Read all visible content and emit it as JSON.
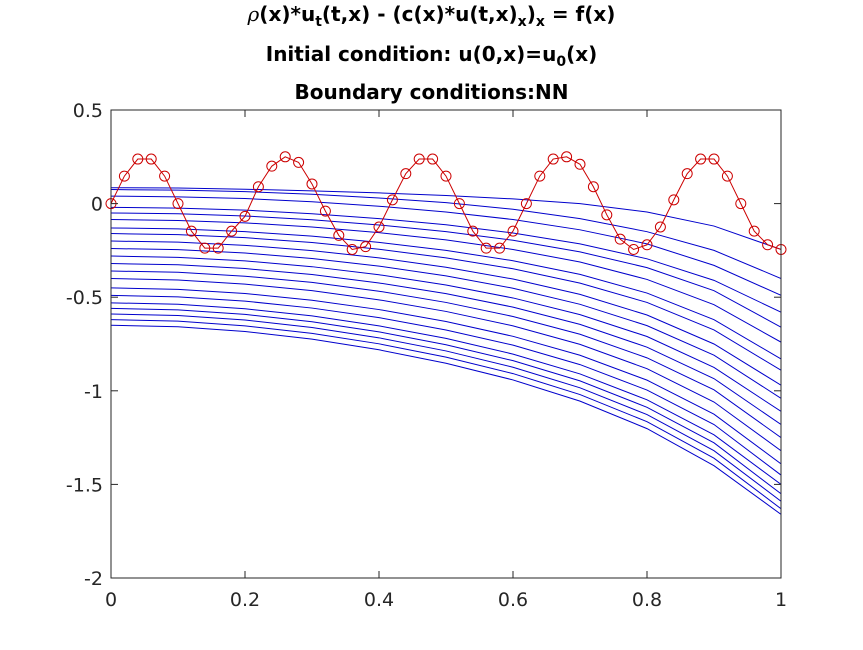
{
  "title": {
    "line1": {
      "rho": "ρ",
      "p1": "(x)*u",
      "sub1": "t",
      "p2": "(t,x) - (c(x)*u(t,x)",
      "sub2": "x",
      "p3": ")",
      "sub3": "x",
      "p4": " = f(x)"
    },
    "line2": {
      "p1": "Initial condition: u(0,x)=u",
      "sub1": "0",
      "p2": "(x)"
    },
    "line3": "Boundary conditions:NN"
  },
  "chart_data": {
    "type": "line",
    "xlim": [
      0,
      1
    ],
    "ylim": [
      -2,
      0.5
    ],
    "xticks": [
      0,
      0.2,
      0.4,
      0.6,
      0.8,
      1
    ],
    "xtick_labels": [
      "0",
      "0.2",
      "0.4",
      "0.6",
      "0.8",
      "1"
    ],
    "yticks": [
      0.5,
      0,
      -0.5,
      -1,
      -1.5,
      -2
    ],
    "ytick_labels": [
      "0.5",
      "0",
      "-0.5",
      "-1",
      "-1.5",
      "-2"
    ],
    "grid": false,
    "initial_condition": {
      "color": "#cc0000",
      "marker": "circle",
      "x": [
        0,
        0.02,
        0.04,
        0.06,
        0.08,
        0.1,
        0.12,
        0.14,
        0.16,
        0.18,
        0.2,
        0.22,
        0.24,
        0.26,
        0.28,
        0.3,
        0.32,
        0.34,
        0.36,
        0.38,
        0.4,
        0.42,
        0.44,
        0.46,
        0.48,
        0.5,
        0.52,
        0.54,
        0.56,
        0.58,
        0.6,
        0.62,
        0.64,
        0.66,
        0.68,
        0.7,
        0.72,
        0.74,
        0.76,
        0.78,
        0.8,
        0.82,
        0.84,
        0.86,
        0.88,
        0.9,
        0.92,
        0.94,
        0.96,
        0.98,
        1
      ],
      "y": [
        0,
        0.147,
        0.238,
        0.238,
        0.147,
        0.0,
        -0.147,
        -0.238,
        -0.238,
        -0.147,
        -0.068,
        0.09,
        0.2,
        0.25,
        0.22,
        0.105,
        -0.04,
        -0.17,
        -0.245,
        -0.23,
        -0.125,
        0.02,
        0.16,
        0.238,
        0.238,
        0.147,
        0.0,
        -0.147,
        -0.238,
        -0.238,
        -0.147,
        0.0,
        0.147,
        0.238,
        0.25,
        0.21,
        0.09,
        -0.06,
        -0.19,
        -0.245,
        -0.22,
        -0.125,
        0.02,
        0.16,
        0.238,
        0.238,
        0.147,
        0.0,
        -0.147,
        -0.22,
        -0.245
      ]
    },
    "solution_curves": {
      "color": "#0000cc",
      "x": [
        0,
        0.1,
        0.2,
        0.3,
        0.4,
        0.5,
        0.6,
        0.7,
        0.8,
        0.9,
        1
      ],
      "series": [
        {
          "values": [
            0.085,
            0.083,
            0.077,
            0.068,
            0.057,
            0.043,
            0.025,
            0.0,
            -0.045,
            -0.12,
            -0.245
          ]
        },
        {
          "values": [
            0.075,
            0.072,
            0.064,
            0.05,
            0.03,
            0.005,
            -0.03,
            -0.08,
            -0.15,
            -0.25,
            -0.4
          ]
        },
        {
          "values": [
            0.04,
            0.036,
            0.027,
            0.01,
            -0.014,
            -0.045,
            -0.085,
            -0.14,
            -0.215,
            -0.33,
            -0.49
          ]
        },
        {
          "values": [
            -0.02,
            -0.024,
            -0.035,
            -0.054,
            -0.08,
            -0.113,
            -0.157,
            -0.215,
            -0.295,
            -0.41,
            -0.58
          ]
        },
        {
          "values": [
            -0.05,
            -0.054,
            -0.066,
            -0.086,
            -0.114,
            -0.15,
            -0.196,
            -0.258,
            -0.342,
            -0.465,
            -0.66
          ]
        },
        {
          "values": [
            -0.085,
            -0.09,
            -0.103,
            -0.125,
            -0.155,
            -0.194,
            -0.245,
            -0.312,
            -0.405,
            -0.54,
            -0.74
          ]
        },
        {
          "values": [
            -0.13,
            -0.135,
            -0.15,
            -0.174,
            -0.207,
            -0.25,
            -0.305,
            -0.378,
            -0.478,
            -0.62,
            -0.83
          ]
        },
        {
          "values": [
            -0.16,
            -0.166,
            -0.182,
            -0.208,
            -0.244,
            -0.29,
            -0.348,
            -0.425,
            -0.528,
            -0.675,
            -0.89
          ]
        },
        {
          "values": [
            -0.2,
            -0.206,
            -0.223,
            -0.251,
            -0.29,
            -0.34,
            -0.403,
            -0.485,
            -0.595,
            -0.75,
            -0.97
          ]
        },
        {
          "values": [
            -0.24,
            -0.246,
            -0.264,
            -0.293,
            -0.334,
            -0.386,
            -0.452,
            -0.538,
            -0.652,
            -0.81,
            -1.04
          ]
        },
        {
          "values": [
            -0.28,
            -0.287,
            -0.306,
            -0.337,
            -0.38,
            -0.435,
            -0.504,
            -0.593,
            -0.71,
            -0.875,
            -1.11
          ]
        },
        {
          "values": [
            -0.32,
            -0.327,
            -0.347,
            -0.379,
            -0.424,
            -0.481,
            -0.553,
            -0.645,
            -0.767,
            -0.935,
            -1.18
          ]
        },
        {
          "values": [
            -0.36,
            -0.367,
            -0.388,
            -0.421,
            -0.468,
            -0.528,
            -0.603,
            -0.698,
            -0.824,
            -0.995,
            -1.25
          ]
        },
        {
          "values": [
            -0.4,
            -0.408,
            -0.43,
            -0.465,
            -0.514,
            -0.576,
            -0.653,
            -0.752,
            -0.882,
            -1.06,
            -1.32
          ]
        },
        {
          "values": [
            -0.45,
            -0.458,
            -0.48,
            -0.516,
            -0.566,
            -0.63,
            -0.709,
            -0.81,
            -0.943,
            -1.125,
            -1.39
          ]
        },
        {
          "values": [
            -0.49,
            -0.498,
            -0.521,
            -0.558,
            -0.609,
            -0.675,
            -0.756,
            -0.86,
            -0.996,
            -1.18,
            -1.45
          ]
        },
        {
          "values": [
            -0.53,
            -0.538,
            -0.562,
            -0.6,
            -0.653,
            -0.72,
            -0.804,
            -0.91,
            -1.048,
            -1.235,
            -1.5
          ]
        },
        {
          "values": [
            -0.56,
            -0.568,
            -0.592,
            -0.631,
            -0.685,
            -0.754,
            -0.839,
            -0.947,
            -1.088,
            -1.278,
            -1.55
          ]
        },
        {
          "values": [
            -0.59,
            -0.598,
            -0.622,
            -0.662,
            -0.717,
            -0.787,
            -0.874,
            -0.984,
            -1.127,
            -1.32,
            -1.59
          ]
        },
        {
          "values": [
            -0.62,
            -0.628,
            -0.653,
            -0.693,
            -0.749,
            -0.82,
            -0.908,
            -1.02,
            -1.165,
            -1.36,
            -1.63
          ]
        },
        {
          "values": [
            -0.65,
            -0.658,
            -0.683,
            -0.724,
            -0.781,
            -0.853,
            -0.942,
            -1.055,
            -1.202,
            -1.4,
            -1.66
          ]
        }
      ]
    }
  }
}
